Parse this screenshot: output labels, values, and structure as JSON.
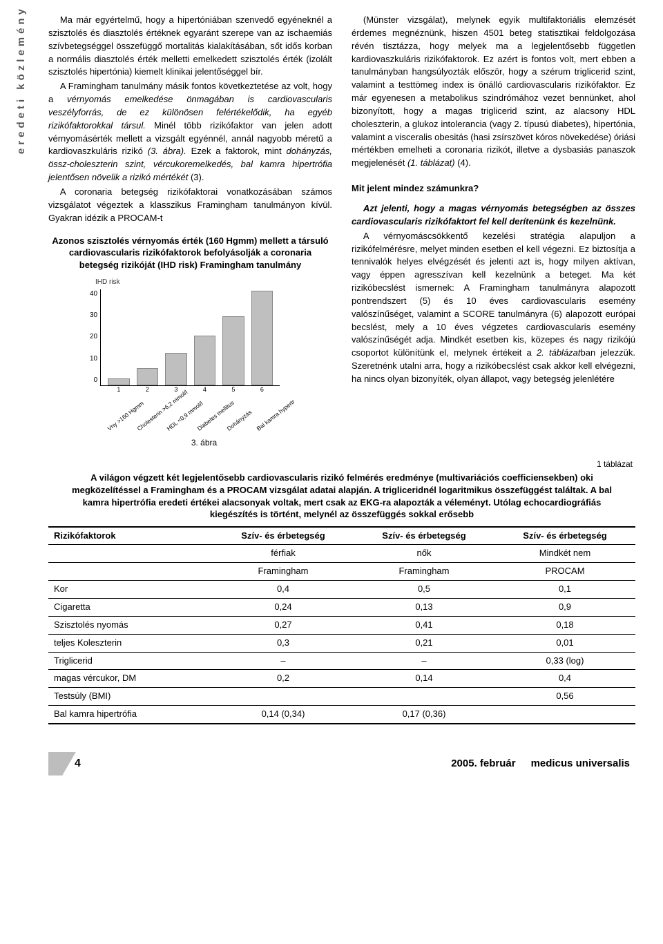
{
  "sideLabel": "eredeti közlemény",
  "leftParas": [
    "Ma már egyértelmű, hogy a hipertóniában szenvedő egyéneknél a szisztolés és diasztolés értéknek egyaránt szerepe van az ischaemiás szívbetegséggel összefüggő mortalitás kialakításában, sőt idős korban a normális diasztolés érték melletti emelkedett szisztolés érték (izolált szisztolés hipertónia) kiemelt klinikai jelentőséggel bír.",
    "A Framingham tanulmány másik fontos következtetése az volt, hogy a <span class=\"italic\">vérnyomás emelkedése önmagában is cardiovascularis veszélyforrás, de ez különösen felértékelődik, ha egyéb rizikófaktorokkal társul.</span> Minél több rizikófaktor van jelen adott vérnyomásérték mellett a vizsgált egyénnél, annál nagyobb méretű a kardiovaszkuláris rizikó <span class=\"italic\">(3. ábra).</span> Ezek a faktorok, mint <span class=\"italic\">dohányzás, össz-choleszterin szint, vércukoremelkedés, bal kamra hipertrófia jelentősen növelik a rizikó mértékét</span> (3).",
    "A coronaria betegség rizikófaktorai vonatkozásában számos vizsgálatot végeztek a klasszikus Framingham tanulmányon kívül. Gyakran idézik a PROCAM-t"
  ],
  "chartTitle": "Azonos szisztolés vérnyomás érték (160 Hgmm) mellett a társuló cardiovascularis rizikófaktorok befolyásolják a coronaria betegség rizikóját (IHD risk) Framingham tanulmány",
  "chart": {
    "type": "bar",
    "ylabel": "IHD risk",
    "yticks": [
      "40",
      "30",
      "20",
      "10",
      "0"
    ],
    "ymax": 45,
    "bars": [
      {
        "num": "1",
        "label": "Vny >160 Hgmm",
        "value": 3
      },
      {
        "num": "2",
        "label": "Cholesterin >6,2 mmol/l",
        "value": 8
      },
      {
        "num": "3",
        "label": "HDL <0,9 mmol/l",
        "value": 15
      },
      {
        "num": "4",
        "label": "Diabetes mellitus",
        "value": 23
      },
      {
        "num": "5",
        "label": "Dohányzás",
        "value": 32
      },
      {
        "num": "6",
        "label": "Bal kamra hypertr",
        "value": 44
      }
    ],
    "bar_color": "#bfbfbf",
    "bar_border": "#888888",
    "axis_color": "#000000",
    "caption": "3. ábra"
  },
  "rightParas": [
    "(Münster vizsgálat), melynek egyik multifaktoriális elemzését érdemes megnéznünk, hiszen 4501 beteg statisztikai feldolgozása révén tisztázza, hogy melyek ma a legjelentősebb független kardiovaszkuláris rizikófaktorok. Ez azért is fontos volt, mert ebben a tanulmányban hangsúlyozták először, hogy a szérum triglicerid szint, valamint a testtömeg index is önálló cardiovascularis rizikófaktor. Ez már egyenesen a metabolikus szindrómához vezet bennünket, ahol bizonyított, hogy a magas triglicerid szint, az alacsony HDL choleszterin, a glukoz intolerancia (vagy 2. típusú diabetes), hipertónia, valamint a visceralis obesitás (hasi zsírszövet kóros növekedése) óriási mértékben emelheti a coronaria rizikót, illetve a dysbasiás panaszok megjelenését <span class=\"italic\">(1. táblázat)</span> (4)."
  ],
  "sectionHead": "Mit jelent mindez számunkra?",
  "rightParas2": [
    "<span class=\"bolditalic\">Azt jelenti, hogy a magas vérnyomás betegségben az összes cardiovascularis rizikófaktort fel kell derítenünk és kezelnünk.</span>",
    "A vérnyomáscsökkentő kezelési stratégia alapuljon a rizikófelmérésre, melyet minden esetben el kell végezni. Ez biztosítja a tennivalók helyes elvégzését és jelenti azt is, hogy milyen aktívan, vagy éppen agresszívan kell kezelnünk a beteget. Ma két rizikóbecslést ismernek: A Framingham tanulmányra alapozott pontrendszert (5) és 10 éves cardiovascularis esemény valószínűséget, valamint a SCORE tanulmányra (6) alapozott európai becslést, mely a 10 éves végzetes cardiovascularis esemény valószínűségét adja. Mindkét esetben kis, közepes és nagy rizikójú csoportot különítünk el, melynek értékeit a <span class=\"italic\">2. táblázat</span>ban jelezzük. Szeretnénk utalni arra, hogy a rizikóbecslést csak akkor kell elvégezni, ha nincs olyan bizonyíték, olyan állapot, vagy betegség jelenlétére"
  ],
  "tableLabel": "1 táblázat",
  "tableCaption": "A világon végzett két legjelentősebb cardiovascularis rizikó felmérés eredménye (multivariációs coefficiensekben) oki megközelítéssel a Framingham és a PROCAM vizsgálat adatai alapján. A trigliceridnél logaritmikus összefüggést találtak. A bal kamra hipertrófia eredeti értékei alacsonyak voltak, mert csak az EKG-ra alapozták a véleményt. Utólag echocardiográfiás kiegészítés is történt, melynél az összefüggés sokkal erősebb",
  "table": {
    "head1": [
      "Rizikófaktorok",
      "Szív- és érbetegség",
      "Szív- és érbetegség",
      "Szív- és érbetegség"
    ],
    "head2": [
      "",
      "férfiak",
      "nők",
      "Mindkét nem"
    ],
    "head3": [
      "",
      "Framingham",
      "Framingham",
      "PROCAM"
    ],
    "rows": [
      [
        "Kor",
        "0,4",
        "0,5",
        "0,1"
      ],
      [
        "Cigaretta",
        "0,24",
        "0,13",
        "0,9"
      ],
      [
        "Szisztolés nyomás",
        "0,27",
        "0,41",
        "0,18"
      ],
      [
        "teljes Koleszterin",
        "0,3",
        "0,21",
        "0,01"
      ],
      [
        "Triglicerid",
        "–",
        "–",
        "0,33  (log)"
      ],
      [
        "magas vércukor, DM",
        "0,2",
        "0,14",
        "0,4"
      ],
      [
        "Testsúly (BMI)",
        "",
        "",
        "0,56"
      ],
      [
        "Bal kamra hipertrófia",
        "0,14 (0,34)",
        "0,17 (0,36)",
        ""
      ]
    ]
  },
  "footer": {
    "page": "4",
    "date": "2005. február",
    "journal": "medicus universalis"
  }
}
